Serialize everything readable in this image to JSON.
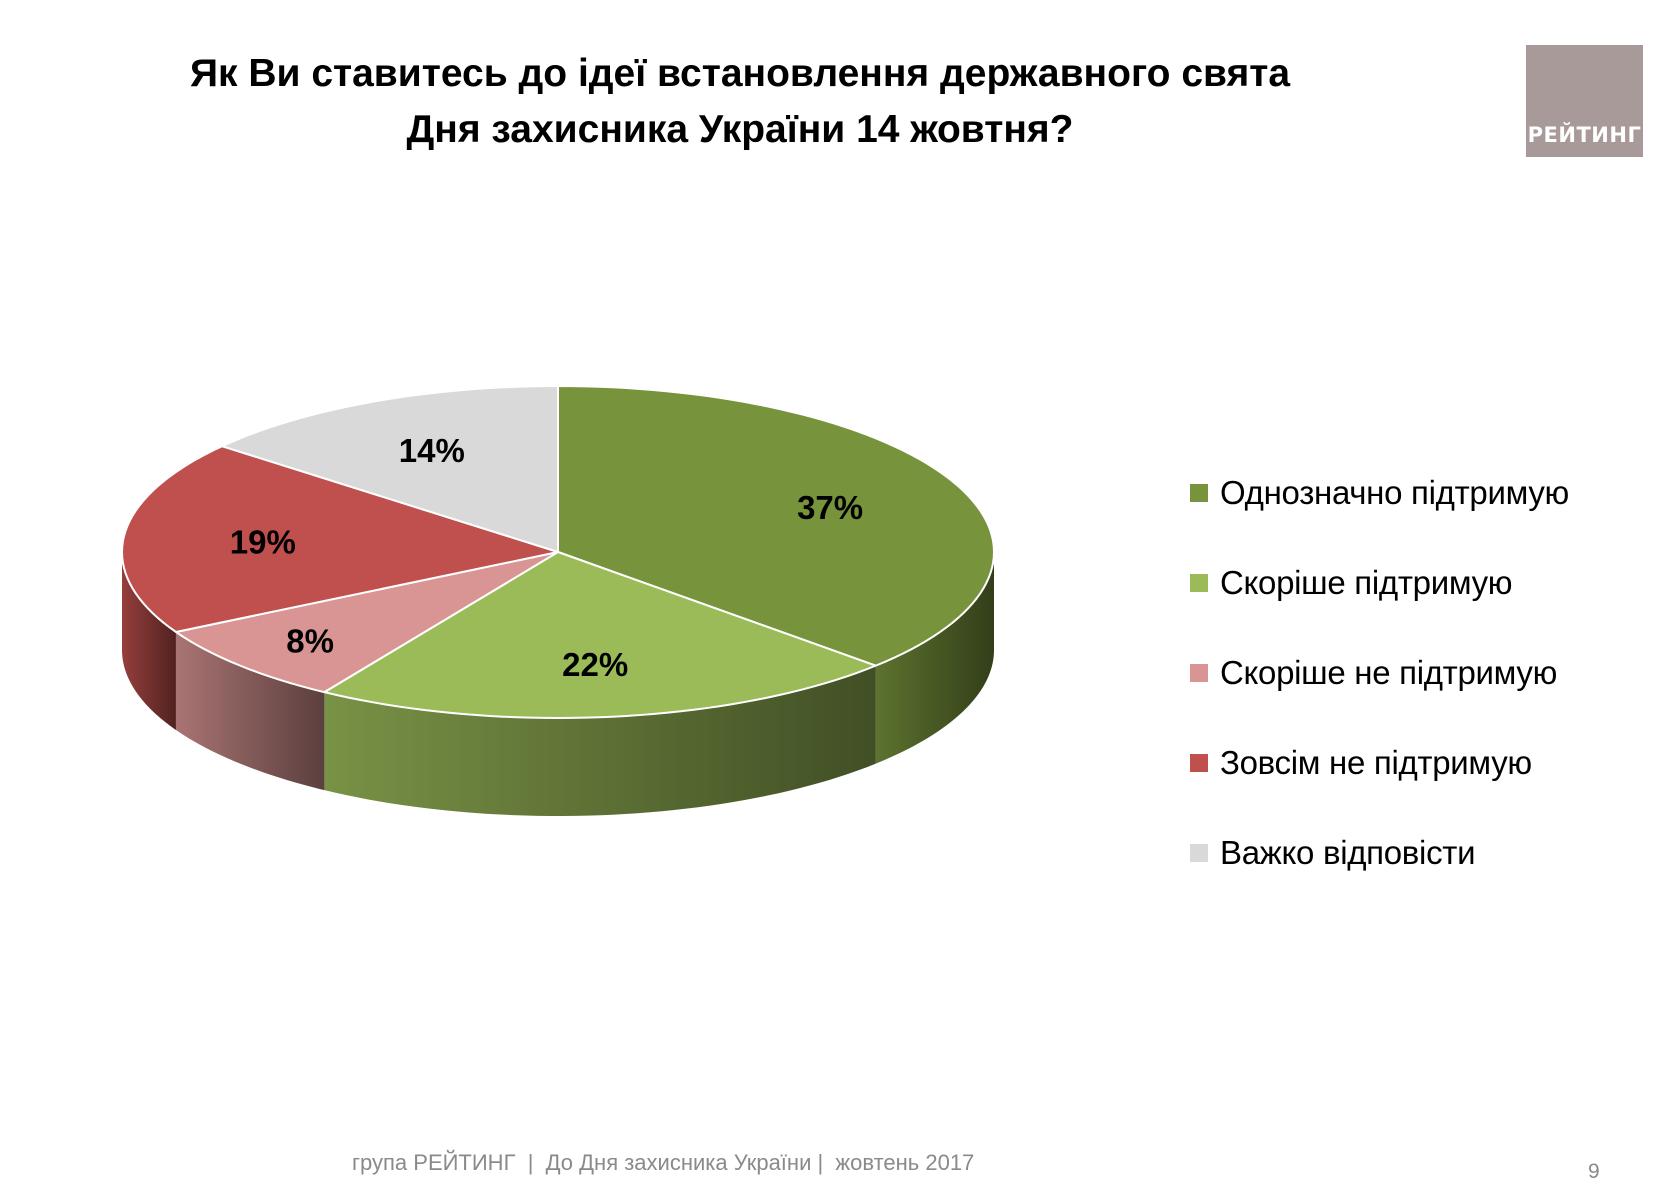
{
  "title": {
    "line1": "Як Ви ставитесь до ідеї встановлення державного свята",
    "line2": "Дня захисника України 14 жовтня?"
  },
  "logo": {
    "text": "РЕЙТИНГ",
    "color": "#a89a99"
  },
  "chart_data": {
    "type": "pie",
    "style": "3d",
    "legend_position": "right",
    "slices": [
      {
        "label": "Однозначно підтримую",
        "value": 37,
        "value_label": "37%",
        "color": "#77933c"
      },
      {
        "label": "Скоріше підтримую",
        "value": 22,
        "value_label": "22%",
        "color": "#9bbb59"
      },
      {
        "label": "Скоріше не підтримую",
        "value": 8,
        "value_label": "8%",
        "color": "#d99594"
      },
      {
        "label": "Зовсім не підтримую",
        "value": 19,
        "value_label": "19%",
        "color": "#c0504d"
      },
      {
        "label": "Важко відповісти",
        "value": 14,
        "value_label": "14%",
        "color": "#d9d9d9"
      }
    ]
  },
  "footer": {
    "text": "група РЕЙТИНГ  |  До Дня захисника України |  жовтень 2017"
  },
  "page_number": "9"
}
